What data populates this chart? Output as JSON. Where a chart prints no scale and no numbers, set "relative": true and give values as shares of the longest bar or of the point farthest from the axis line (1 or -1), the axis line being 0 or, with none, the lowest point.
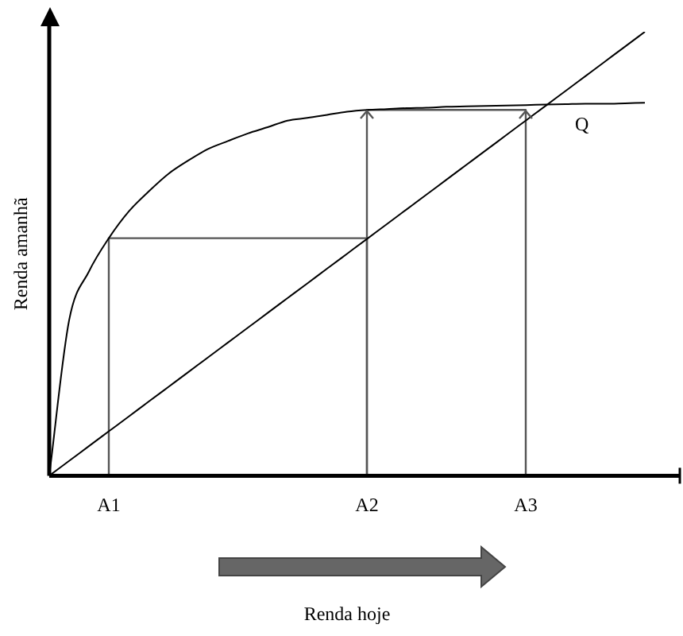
{
  "chart_data": {
    "type": "line",
    "relative": true,
    "xlabel": "Renda hoje",
    "ylabel": "Renda amanhã",
    "categories": [
      null,
      null,
      null,
      "A1",
      null,
      null,
      null,
      null,
      null,
      null,
      null,
      null,
      null,
      null,
      null,
      null,
      "A2",
      null,
      null,
      null,
      null,
      null,
      null,
      null,
      "A3",
      null,
      null,
      null,
      null,
      null,
      null
    ],
    "series": [
      {
        "color": "#000000",
        "values": [
          0,
          0.35,
          0.46,
          0.535,
          0.595,
          0.64,
          0.68,
          0.71,
          0.736,
          0.754,
          0.771,
          0.785,
          0.8,
          0.806,
          0.813,
          0.82,
          0.824,
          0.826,
          0.828,
          0.829,
          0.831,
          0.832,
          0.833,
          0.834,
          0.835,
          0.836,
          0.837,
          0.838,
          0.838,
          0.839,
          0.84
        ]
      },
      {
        "color": "#000000",
        "values": [
          0,
          0.0333,
          0.0667,
          0.1,
          0.1333,
          0.1667,
          0.2,
          0.2333,
          0.2667,
          0.3,
          0.3333,
          0.3667,
          0.4,
          0.4333,
          0.4667,
          0.5,
          0.5333,
          0.5667,
          0.6,
          0.6333,
          0.6667,
          0.7,
          0.7333,
          0.7667,
          0.8,
          0.8333,
          0.8667,
          0.9,
          0.9333,
          0.9667,
          1
        ]
      },
      {
        "color": "#555555",
        "x": [
          "A1",
          "A1",
          "A2",
          "A2"
        ],
        "values": [
          0,
          0.535,
          0.535,
          0
        ]
      },
      {
        "color": "#555555",
        "x": [
          "A2",
          "A2",
          "A3",
          "A3"
        ],
        "values": [
          0,
          0.824,
          0.824,
          0
        ]
      }
    ],
    "annotations": [
      "Q"
    ],
    "grid": false,
    "legend": false,
    "marker": "none",
    "line_style": "solid"
  }
}
